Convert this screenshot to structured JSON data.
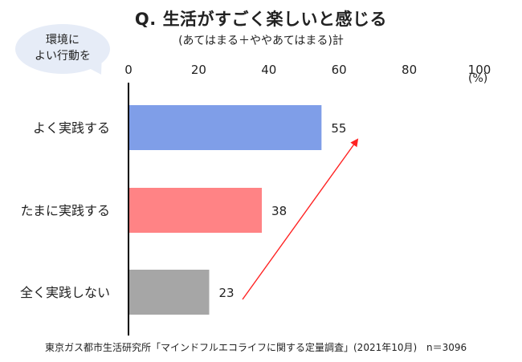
{
  "chart_data": {
    "type": "bar",
    "orientation": "horizontal",
    "title": "Q. 生活がすごく楽しいと感じる",
    "subtitle": "(あてはまる＋ややあてはまる)計",
    "callout": [
      "環境に",
      "よい行動を"
    ],
    "categories": [
      "よく実践する",
      "たまに実践する",
      "全く実践しない"
    ],
    "values": [
      55,
      38,
      23
    ],
    "colors": [
      "#7f9ee8",
      "#ff8385",
      "#a6a6a6"
    ],
    "x_ticks": [
      0,
      20,
      40,
      60,
      80,
      100
    ],
    "xlim": [
      0,
      100
    ],
    "unit": "(%)",
    "annotation": "red arrow rising from the 全く実践しない bar toward the よく実践する bar",
    "arrow_color": "#ff2222"
  },
  "footer": {
    "source": "東京ガス都市生活研究所「マインドフルエコライフに関する定量調査」(2021年10月)",
    "n": "n＝3096"
  }
}
